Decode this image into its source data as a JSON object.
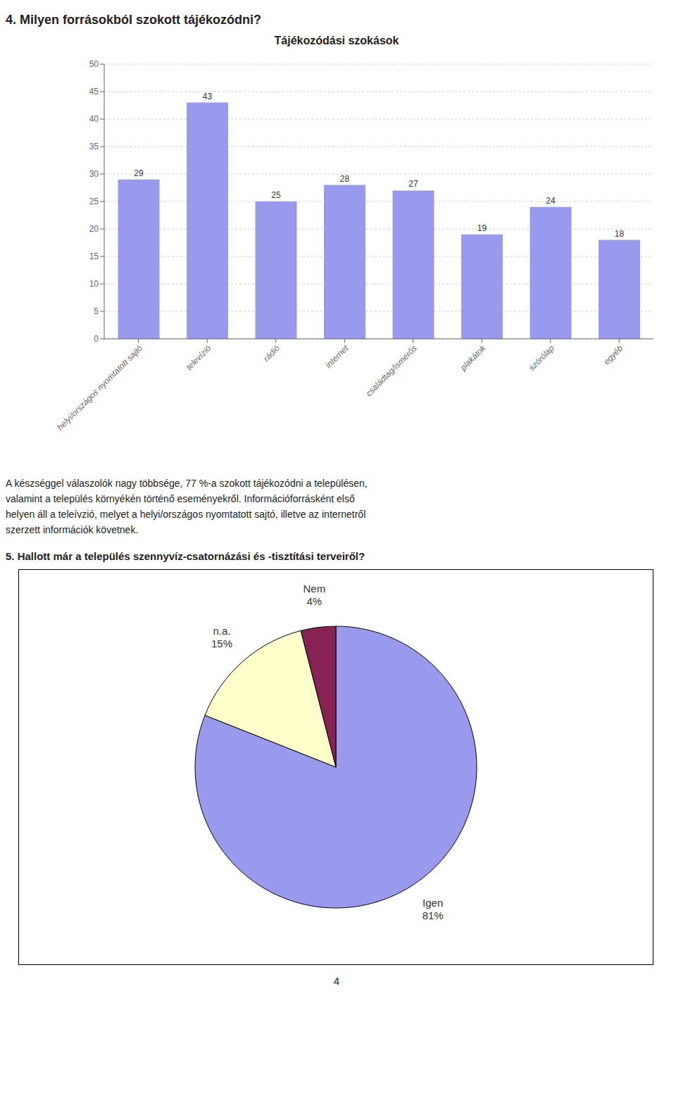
{
  "title": "4. Milyen forrásokból szokott tájékozódni?",
  "annotations": [
    "A készséggel válaszolók nagy többsége, 77 %-a szokott tájékozódni a településen,",
    "valamint a település környékén történő eseményekről. Információforrásként első",
    "helyen áll a teleívzió, melyet a helyi/országos nyomtatott sajtó, illetve az internetről",
    "szerzett információk követnek."
  ],
  "page_number": "4",
  "chart_data": [
    {
      "type": "bar",
      "title": "Tájékozódási szokások",
      "categories": [
        "helyi/országos nyomtatott sajtó",
        "televízió",
        "rádió",
        "internet",
        "családtag/ismerős",
        "plakátok",
        "szórólap",
        "egyéb"
      ],
      "values": [
        29,
        43,
        25,
        28,
        27,
        19,
        24,
        18
      ],
      "color": "#9999ee",
      "ylim": [
        0,
        50
      ],
      "yticks": [
        0,
        5,
        10,
        15,
        20,
        25,
        30,
        35,
        40,
        45,
        50
      ],
      "grid": true,
      "data_labels": true
    },
    {
      "type": "pie",
      "title": "5. Hallott már a település szennyvíz-csatornázási és -tisztítási terveiről?",
      "categories": [
        "Igen",
        "n.a.",
        "Nem"
      ],
      "values": [
        81,
        15,
        4
      ],
      "value_labels": [
        "81%",
        "15%",
        "4%"
      ],
      "colors": [
        "#9999ee",
        "#ffffcc",
        "#882255"
      ],
      "data_labels": true
    }
  ]
}
